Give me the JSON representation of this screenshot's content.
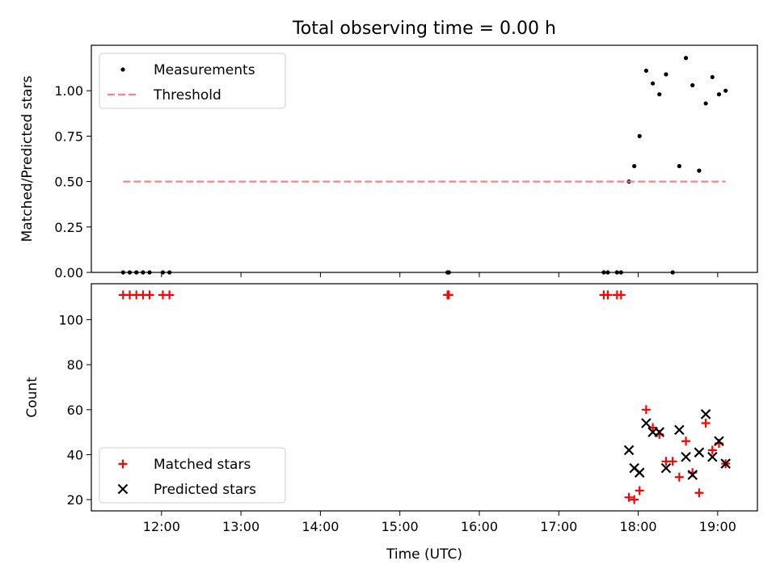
{
  "title": "Total observing time = 0.00 h",
  "xlabel": "Time (UTC)",
  "colors": {
    "measurement": "#000000",
    "threshold": "#ff8080",
    "matched": "#ff0000",
    "predicted": "#000000",
    "axes": "#000000"
  },
  "chart_data": [
    {
      "type": "scatter",
      "panel": "top",
      "ylabel": "Matched/Predicted stars",
      "xlim": [
        "11:07",
        "19:30"
      ],
      "ylim": [
        0,
        1.25
      ],
      "yticks": [
        "0.00",
        "0.25",
        "0.50",
        "0.75",
        "1.00"
      ],
      "xticks": [
        "12:00",
        "13:00",
        "14:00",
        "15:00",
        "16:00",
        "17:00",
        "18:00",
        "19:00"
      ],
      "legend": {
        "placement": "top-left",
        "entries": [
          "Measurements",
          "Threshold"
        ]
      },
      "series": [
        {
          "name": "Measurements",
          "marker": "dot",
          "points": [
            [
              "11:31",
              0
            ],
            [
              "11:36",
              0
            ],
            [
              "11:41",
              0
            ],
            [
              "11:46",
              0
            ],
            [
              "11:51",
              0
            ],
            [
              "12:01",
              0
            ],
            [
              "12:06",
              0
            ],
            [
              "15:36",
              0
            ],
            [
              "15:37",
              0
            ],
            [
              "17:34",
              0
            ],
            [
              "17:37",
              0
            ],
            [
              "17:44",
              0
            ],
            [
              "17:47",
              0
            ],
            [
              "17:53",
              0.5
            ],
            [
              "17:57",
              0.585
            ],
            [
              "18:01",
              0.75
            ],
            [
              "18:06",
              1.11
            ],
            [
              "18:11",
              1.04
            ],
            [
              "18:16",
              0.98
            ],
            [
              "18:21",
              1.09
            ],
            [
              "18:26",
              0
            ],
            [
              "18:31",
              0.585
            ],
            [
              "18:36",
              1.18
            ],
            [
              "18:41",
              1.03
            ],
            [
              "18:46",
              0.56
            ],
            [
              "18:51",
              0.93
            ],
            [
              "18:56",
              1.075
            ],
            [
              "19:01",
              0.98
            ],
            [
              "19:06",
              1.0
            ]
          ]
        },
        {
          "name": "Threshold",
          "style": "dashed",
          "points": [
            [
              "11:31",
              0.5
            ],
            [
              "19:06",
              0.5
            ]
          ]
        }
      ]
    },
    {
      "type": "scatter",
      "panel": "bottom",
      "ylabel": "Count",
      "xlim": [
        "11:07",
        "19:30"
      ],
      "ylim": [
        15,
        116
      ],
      "yticks": [
        "20",
        "40",
        "60",
        "80",
        "100"
      ],
      "xticks": [
        "12:00",
        "13:00",
        "14:00",
        "15:00",
        "16:00",
        "17:00",
        "18:00",
        "19:00"
      ],
      "legend": {
        "placement": "lower-left",
        "entries": [
          "Matched stars",
          "Predicted stars"
        ]
      },
      "series": [
        {
          "name": "Matched stars",
          "marker": "plus",
          "points": [
            [
              "11:31",
              111
            ],
            [
              "11:36",
              111
            ],
            [
              "11:41",
              111
            ],
            [
              "11:46",
              111
            ],
            [
              "11:51",
              111
            ],
            [
              "12:01",
              111
            ],
            [
              "12:06",
              111
            ],
            [
              "15:36",
              111
            ],
            [
              "15:37",
              111
            ],
            [
              "17:34",
              111
            ],
            [
              "17:37",
              111
            ],
            [
              "17:44",
              111
            ],
            [
              "17:47",
              111
            ],
            [
              "17:53",
              21
            ],
            [
              "17:57",
              20
            ],
            [
              "18:01",
              24
            ],
            [
              "18:06",
              60
            ],
            [
              "18:11",
              52
            ],
            [
              "18:16",
              49
            ],
            [
              "18:21",
              37
            ],
            [
              "18:26",
              37
            ],
            [
              "18:31",
              30
            ],
            [
              "18:36",
              46
            ],
            [
              "18:41",
              32
            ],
            [
              "18:46",
              23
            ],
            [
              "18:51",
              54
            ],
            [
              "18:56",
              42
            ],
            [
              "19:01",
              45
            ],
            [
              "19:06",
              36
            ]
          ]
        },
        {
          "name": "Predicted stars",
          "marker": "x",
          "points": [
            [
              "17:53",
              42
            ],
            [
              "17:57",
              34
            ],
            [
              "18:01",
              32
            ],
            [
              "18:06",
              54
            ],
            [
              "18:11",
              50
            ],
            [
              "18:16",
              50
            ],
            [
              "18:21",
              34
            ],
            [
              "18:31",
              51
            ],
            [
              "18:36",
              39
            ],
            [
              "18:41",
              31
            ],
            [
              "18:46",
              41
            ],
            [
              "18:51",
              58
            ],
            [
              "18:56",
              39
            ],
            [
              "19:01",
              46
            ],
            [
              "19:06",
              36
            ]
          ]
        }
      ]
    }
  ]
}
